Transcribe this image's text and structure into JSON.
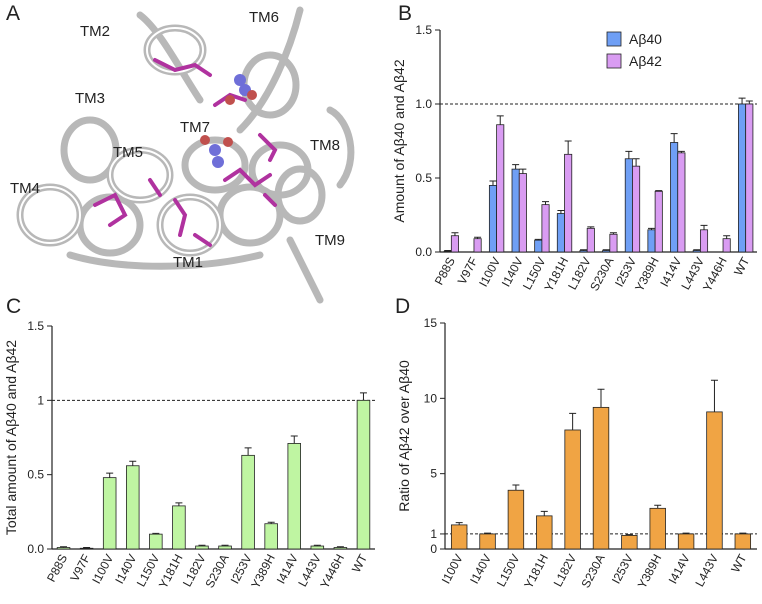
{
  "structure": {
    "panel": "A",
    "labels": [
      "TM2",
      "TM6",
      "TM3",
      "TM7",
      "TM5",
      "TM8",
      "TM4",
      "TM1",
      "TM9"
    ]
  },
  "chart_data": [
    {
      "type": "bar",
      "panel": "B",
      "ylabel": "Amount of Aβ40 and Aβ42",
      "categories": [
        "P88S",
        "V97F",
        "I100V",
        "I140V",
        "L150V",
        "Y181H",
        "L182V",
        "S230A",
        "I253V",
        "Y389H",
        "I414V",
        "L443V",
        "Y446H",
        "WT"
      ],
      "series": [
        {
          "name": "Aβ40",
          "color": "#6f9ff5",
          "values": [
            0.005,
            0,
            0.45,
            0.56,
            0.08,
            0.26,
            0.01,
            0.01,
            0.63,
            0.15,
            0.74,
            0.01,
            0,
            1.0
          ],
          "errors": [
            0.005,
            0,
            0.03,
            0.03,
            0.005,
            0.02,
            0.005,
            0.005,
            0.05,
            0.01,
            0.06,
            0.005,
            0,
            0.04
          ]
        },
        {
          "name": "Aβ42",
          "color": "#d99cf2",
          "values": [
            0.11,
            0.09,
            0.86,
            0.53,
            0.32,
            0.66,
            0.16,
            0.12,
            0.58,
            0.41,
            0.67,
            0.15,
            0.09,
            1.0
          ],
          "errors": [
            0.02,
            0.01,
            0.06,
            0.03,
            0.02,
            0.09,
            0.01,
            0.01,
            0.05,
            0.005,
            0.01,
            0.03,
            0.02,
            0.02
          ]
        }
      ],
      "ylim": [
        0,
        1.5
      ],
      "yticks": [
        {
          "value": 0,
          "label": "0.0"
        },
        0.5,
        {
          "value": 1,
          "label": "1.0"
        },
        1.5
      ],
      "ref_line": 1,
      "legend": "upper right"
    },
    {
      "type": "bar",
      "panel": "C",
      "ylabel": "Total amount of Aβ40 and Aβ42",
      "categories": [
        "P88S",
        "V97F",
        "I100V",
        "I140V",
        "L150V",
        "Y181H",
        "L182V",
        "S230A",
        "I253V",
        "Y389H",
        "I414V",
        "L443V",
        "Y446H",
        "WT"
      ],
      "series": [
        {
          "color": "#bff5a2",
          "values": [
            0.01,
            0.005,
            0.48,
            0.56,
            0.1,
            0.29,
            0.02,
            0.02,
            0.63,
            0.17,
            0.71,
            0.02,
            0.01,
            1.0
          ],
          "errors": [
            0.005,
            0.005,
            0.03,
            0.03,
            0.005,
            0.02,
            0.005,
            0.005,
            0.05,
            0.01,
            0.05,
            0.005,
            0.005,
            0.05
          ]
        }
      ],
      "ylim": [
        0,
        1.5
      ],
      "yticks": [
        {
          "value": 0,
          "label": "0.0"
        },
        0.5,
        1,
        1.5
      ],
      "ref_line": 1
    },
    {
      "type": "bar",
      "panel": "D",
      "ylabel": "Ratio of Aβ42 over Aβ40",
      "categories": [
        "I100V",
        "I140V",
        "L150V",
        "Y181H",
        "L182V",
        "S230A",
        "I253V",
        "Y389H",
        "I414V",
        "L443V",
        "WT"
      ],
      "series": [
        {
          "color": "#f0a444",
          "values": [
            1.6,
            1.0,
            3.9,
            2.2,
            7.9,
            9.4,
            0.9,
            2.7,
            1.0,
            9.1,
            1.0
          ],
          "errors": [
            0.15,
            0.05,
            0.35,
            0.3,
            1.1,
            1.2,
            0.05,
            0.2,
            0.05,
            2.1,
            0.05
          ]
        }
      ],
      "ylim": [
        0,
        15
      ],
      "yticks": [
        0,
        1,
        5,
        10,
        15
      ],
      "ref_line": 1
    }
  ]
}
